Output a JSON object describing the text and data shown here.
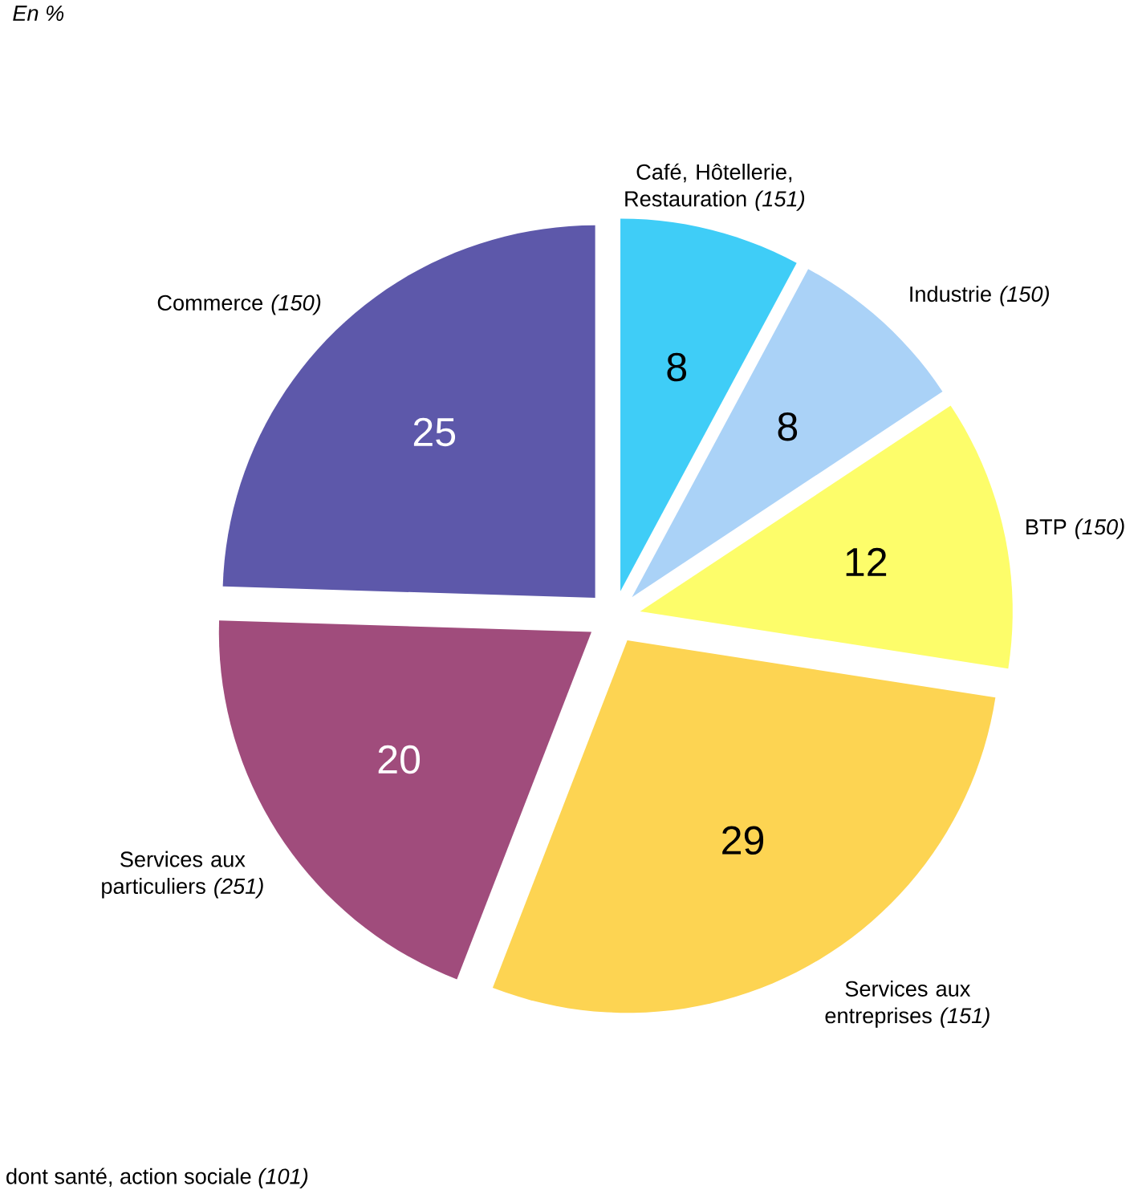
{
  "chart_data": {
    "type": "pie",
    "categories": [
      "Café, Hôtellerie, Restauration *(151)*",
      "Industrie *(150)*",
      "BTP *(150)*",
      "Services aux entreprises *(151)*",
      "Services aux particuliers *(251)*",
      "Commerce *(150)*"
    ],
    "values": [
      8,
      8,
      12,
      29,
      20,
      25
    ],
    "colors": [
      "#3fcdf7",
      "#aad2f7",
      "#fdfd6a",
      "#fdd452",
      "#a04c7c",
      "#5d58aa"
    ],
    "data_labels": true,
    "annotations": [
      "En %",
      "dont santé, action sociale *(101)*"
    ]
  }
}
